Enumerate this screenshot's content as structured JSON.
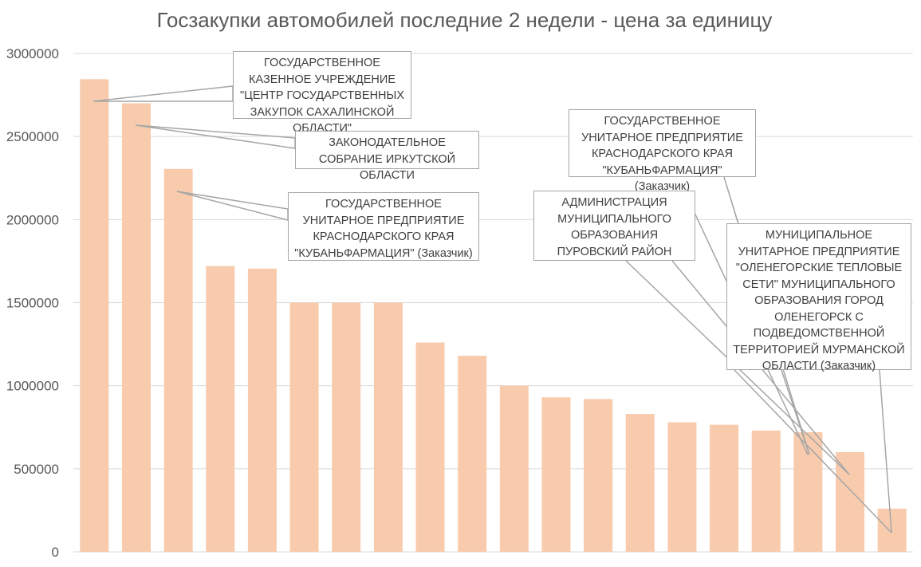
{
  "chart_data": {
    "type": "bar",
    "title": "Госзакупки автомобилей последние 2 недели - цена за единицу",
    "xlabel": "",
    "ylabel": "",
    "ylim": [
      0,
      3000000
    ],
    "yticks": [
      "0",
      "500000",
      "1000000",
      "1500000",
      "2000000",
      "2500000",
      "3000000"
    ],
    "grid": true,
    "bar_color": "#F8CBAD",
    "values": [
      2845000,
      2700000,
      2305000,
      1720000,
      1705000,
      1500000,
      1500000,
      1500000,
      1260000,
      1180000,
      1000000,
      930000,
      920000,
      830000,
      780000,
      765000,
      730000,
      720000,
      600000,
      260000
    ],
    "annotations": [
      {
        "text": "ГОСУДАРСТВЕННОЕ КАЗЕННОЕ УЧРЕЖДЕНИЕ \"ЦЕНТР ГОСУДАРСТВЕННЫХ ЗАКУПОК САХАЛИНСКОЙ ОБЛАСТИ\"",
        "bar": 1
      },
      {
        "text": "ЗАКОНОДАТЕЛЬНОЕ СОБРАНИЕ ИРКУТСКОЙ ОБЛАСТИ",
        "bar": 2
      },
      {
        "text": "ГОСУДАРСТВЕННОЕ УНИТАРНОЕ ПРЕДПРИЯТИЕ КРАСНОДАРСКОГО КРАЯ \"КУБАНЬФАРМАЦИЯ\" (Заказчик)",
        "bar": 3
      },
      {
        "text": "ГОСУДАРСТВЕННОЕ УНИТАРНОЕ ПРЕДПРИЯТИЕ КРАСНОДАРСКОГО КРАЯ \"КУБАНЬФАРМАЦИЯ\" (Заказчик)",
        "bar": 19
      },
      {
        "text": "АДМИНИСТРАЦИЯ МУНИЦИПАЛЬНОГО ОБРАЗОВАНИЯ ПУРОВСКИЙ РАЙОН",
        "bar": 18
      },
      {
        "text": "МУНИЦИПАЛЬНОЕ УНИТАРНОЕ ПРЕДПРИЯТИЕ \"ОЛЕНЕГОРСКИЕ ТЕПЛОВЫЕ СЕТИ\" МУНИЦИПАЛЬНОГО ОБРАЗОВАНИЯ ГОРОД ОЛЕНЕГОРСК С ПОДВЕДОМСТВЕННОЙ ТЕРРИТОРИЕЙ МУРМАНСКОЙ ОБЛАСТИ (Заказчик)",
        "bar": 20
      }
    ]
  }
}
